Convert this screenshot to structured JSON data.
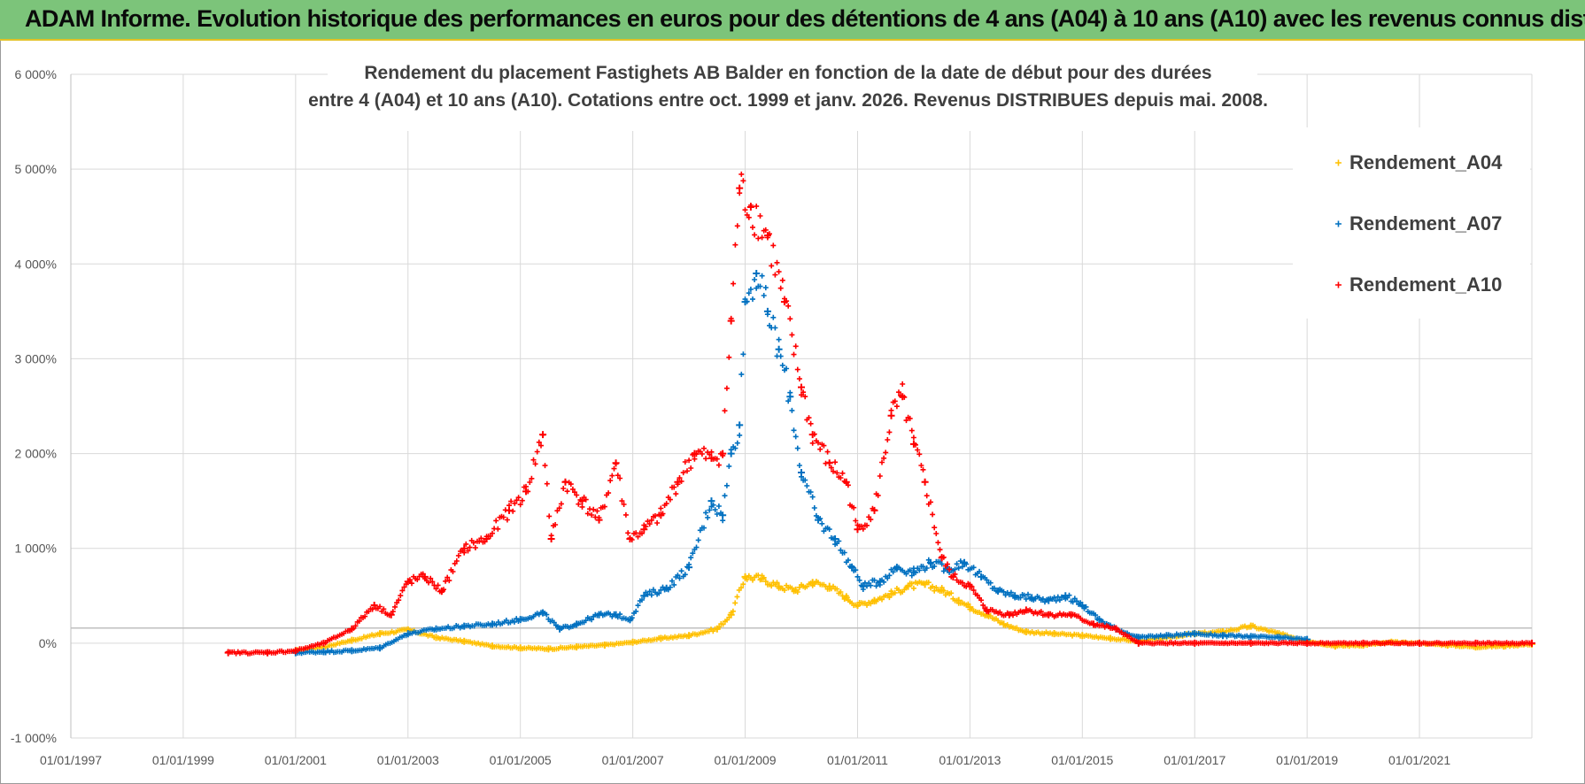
{
  "banner": {
    "title": "ADAM Informe. Evolution historique des performances en euros pour des détentions de 4 ans (A04) à 10 ans (A10) avec les revenus connus distribués"
  },
  "chart_data": {
    "type": "scatter",
    "title_line1": "Rendement du placement Fastighets AB Balder en fonction de la date de début pour des durées",
    "title_line2": "entre 4 (A04) et 10 ans (A10).  Cotations entre oct. 1999 et janv. 2026.  Revenus DISTRIBUES depuis mai. 2008.",
    "xlabel": "",
    "ylabel": "",
    "xlim": [
      1997.0,
      2023.0
    ],
    "ylim": [
      -1000,
      6000
    ],
    "x_ticks": [
      1997,
      1999,
      2001,
      2003,
      2005,
      2007,
      2009,
      2011,
      2013,
      2015,
      2017,
      2019,
      2021
    ],
    "x_tick_labels": [
      "01/01/1997",
      "01/01/1999",
      "01/01/2001",
      "01/01/2003",
      "01/01/2005",
      "01/01/2007",
      "01/01/2009",
      "01/01/2011",
      "01/01/2013",
      "01/01/2015",
      "01/01/2017",
      "01/01/2019",
      "01/01/2021"
    ],
    "y_ticks": [
      -1000,
      0,
      1000,
      2000,
      3000,
      4000,
      5000,
      6000
    ],
    "y_tick_labels": [
      "-1 000%",
      "0%",
      "1 000%",
      "2 000%",
      "3 000%",
      "4 000%",
      "5 000%",
      "6 000%"
    ],
    "grid": true,
    "legend_position": "top-right",
    "marker": "+",
    "series": [
      {
        "name": "Rendement_A04",
        "color": "#ffc000",
        "x": [
          2001.0,
          2001.5,
          2002.0,
          2002.5,
          2003.0,
          2003.5,
          2004.0,
          2004.5,
          2005.0,
          2005.5,
          2006.0,
          2006.5,
          2007.0,
          2007.5,
          2008.0,
          2008.5,
          2008.75,
          2009.0,
          2009.3,
          2009.6,
          2009.9,
          2010.2,
          2010.5,
          2010.8,
          2011.0,
          2011.3,
          2011.6,
          2011.9,
          2012.2,
          2012.5,
          2012.8,
          2013.0,
          2013.3,
          2013.6,
          2014.0,
          2014.5,
          2015.0,
          2015.5,
          2016.0,
          2016.5,
          2017.0,
          2017.5,
          2018.0,
          2018.5,
          2019.0,
          2019.5,
          2020.0,
          2020.5,
          2021.0,
          2021.5,
          2022.0,
          2022.5,
          2023.0
        ],
        "y": [
          -80,
          -40,
          30,
          100,
          140,
          60,
          20,
          -30,
          -50,
          -60,
          -40,
          -20,
          10,
          50,
          80,
          150,
          300,
          700,
          680,
          600,
          560,
          640,
          600,
          480,
          400,
          450,
          520,
          600,
          620,
          560,
          450,
          380,
          300,
          200,
          120,
          100,
          80,
          50,
          20,
          60,
          100,
          120,
          180,
          100,
          20,
          -30,
          -20,
          10,
          0,
          -20,
          -40,
          -30,
          -10
        ]
      },
      {
        "name": "Rendement_A07",
        "color": "#0070c0",
        "x": [
          2001.0,
          2001.5,
          2002.0,
          2002.5,
          2003.0,
          2003.5,
          2004.0,
          2004.5,
          2005.0,
          2005.4,
          2005.7,
          2006.0,
          2006.4,
          2006.7,
          2006.95,
          2007.2,
          2007.6,
          2008.0,
          2008.4,
          2008.6,
          2008.75,
          2008.9,
          2009.0,
          2009.2,
          2009.4,
          2009.6,
          2009.8,
          2010.0,
          2010.3,
          2010.6,
          2010.9,
          2011.1,
          2011.4,
          2011.7,
          2012.0,
          2012.3,
          2012.6,
          2012.9,
          2013.2,
          2013.5,
          2013.8,
          2014.1,
          2014.4,
          2014.7,
          2015.0,
          2015.3,
          2015.6,
          2016.0,
          2016.5,
          2017.0,
          2017.5,
          2018.0,
          2018.5,
          2019.0
        ],
        "y": [
          -100,
          -90,
          -80,
          -50,
          100,
          150,
          180,
          200,
          250,
          320,
          150,
          200,
          300,
          300,
          250,
          500,
          580,
          800,
          1500,
          1350,
          2000,
          2300,
          3600,
          3900,
          3500,
          3100,
          2600,
          1800,
          1300,
          1100,
          800,
          600,
          650,
          800,
          750,
          850,
          780,
          850,
          700,
          550,
          500,
          480,
          450,
          500,
          400,
          250,
          150,
          60,
          80,
          100,
          80,
          70,
          60,
          40
        ]
      },
      {
        "name": "Rendement_A10",
        "color": "#ff0000",
        "x": [
          1999.8,
          2000.5,
          2001.0,
          2001.5,
          2002.0,
          2002.4,
          2002.7,
          2003.0,
          2003.3,
          2003.6,
          2004.0,
          2004.4,
          2004.8,
          2005.1,
          2005.4,
          2005.55,
          2005.8,
          2006.1,
          2006.4,
          2006.7,
          2006.95,
          2007.2,
          2007.5,
          2007.8,
          2008.1,
          2008.4,
          2008.6,
          2008.75,
          2008.9,
          2009.1,
          2009.4,
          2009.7,
          2010.0,
          2010.2,
          2010.5,
          2010.8,
          2011.0,
          2011.3,
          2011.6,
          2011.8,
          2012.0,
          2012.2,
          2012.5,
          2012.7,
          2013.0,
          2013.3,
          2013.7,
          2014.0,
          2014.4,
          2014.8,
          2015.2,
          2015.6,
          2016.0,
          2017.0,
          2018.0,
          2019.0,
          2020.0,
          2021.0,
          2022.0,
          2023.0
        ],
        "y": [
          -100,
          -100,
          -80,
          0,
          150,
          400,
          300,
          650,
          700,
          550,
          1000,
          1100,
          1400,
          1600,
          2200,
          1100,
          1700,
          1500,
          1300,
          1900,
          1100,
          1200,
          1350,
          1700,
          2000,
          1950,
          2000,
          3400,
          4800,
          4600,
          4300,
          3600,
          2700,
          2200,
          1900,
          1700,
          1200,
          1400,
          2400,
          2600,
          2100,
          1700,
          900,
          700,
          600,
          350,
          300,
          350,
          300,
          300,
          200,
          150,
          0,
          0,
          0,
          0,
          0,
          0,
          0,
          0
        ]
      }
    ]
  }
}
